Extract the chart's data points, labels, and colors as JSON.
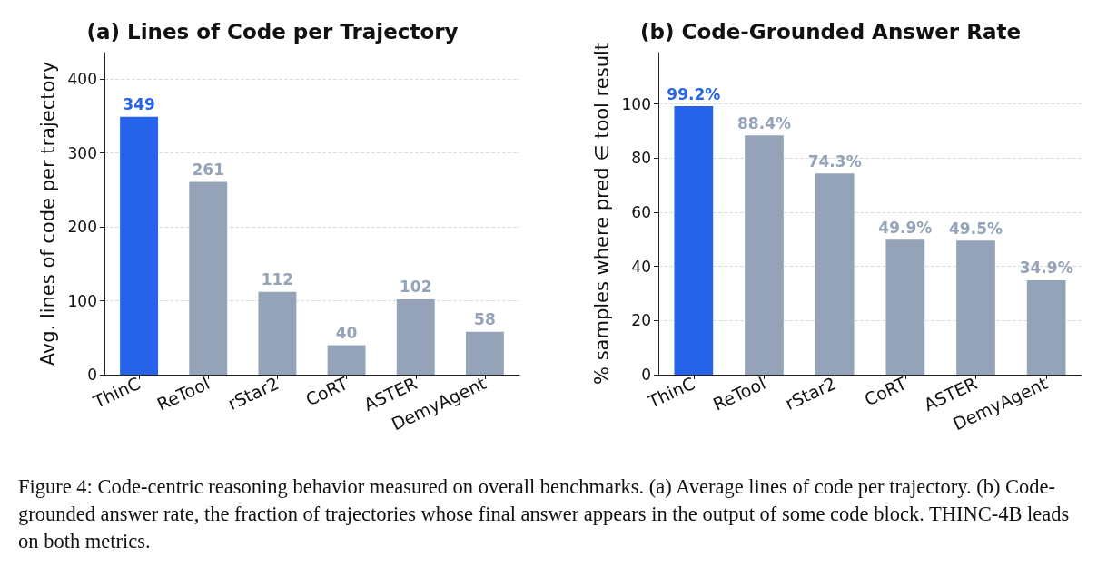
{
  "chart_data": [
    {
      "type": "bar",
      "title": "(a) Lines of Code per Trajectory",
      "ylabel": "Avg. lines of code per trajectory",
      "categories": [
        "ThinC",
        "ReTool",
        "rStar2",
        "CoRT",
        "ASTER",
        "DemyAgent"
      ],
      "values": [
        349,
        261,
        112,
        40,
        102,
        58
      ],
      "colors": [
        "#2563eb",
        "#94a3b8",
        "#94a3b8",
        "#94a3b8",
        "#94a3b8",
        "#94a3b8"
      ],
      "ylim": [
        0,
        436
      ],
      "yticks": [
        0,
        100,
        200,
        300,
        400
      ],
      "grid": "y",
      "data_labels": true,
      "annotations": [
        "Figure 4: Code-centric reasoning behavior measured on overall benchmarks. (a) Average lines of code per trajectory. (b) Code-grounded answer rate, the fraction of trajectories whose final answer appears in the output of some code block. THINC-4B leads on both metrics."
      ]
    },
    {
      "type": "bar",
      "title": "(b) Code-Grounded Answer Rate",
      "ylabel": "% samples where pred ∈ tool result",
      "categories": [
        "ThinC",
        "ReTool",
        "rStar2",
        "CoRT",
        "ASTER",
        "DemyAgent"
      ],
      "values": [
        99.2,
        88.4,
        74.3,
        49.9,
        49.5,
        34.9
      ],
      "value_labels": [
        "99.2%",
        "88.4%",
        "74.3%",
        "49.9%",
        "49.5%",
        "34.9%"
      ],
      "colors": [
        "#2563eb",
        "#94a3b8",
        "#94a3b8",
        "#94a3b8",
        "#94a3b8",
        "#94a3b8"
      ],
      "ylim": [
        0,
        119
      ],
      "yticks": [
        0,
        20,
        40,
        60,
        80,
        100
      ],
      "grid": "y"
    }
  ]
}
